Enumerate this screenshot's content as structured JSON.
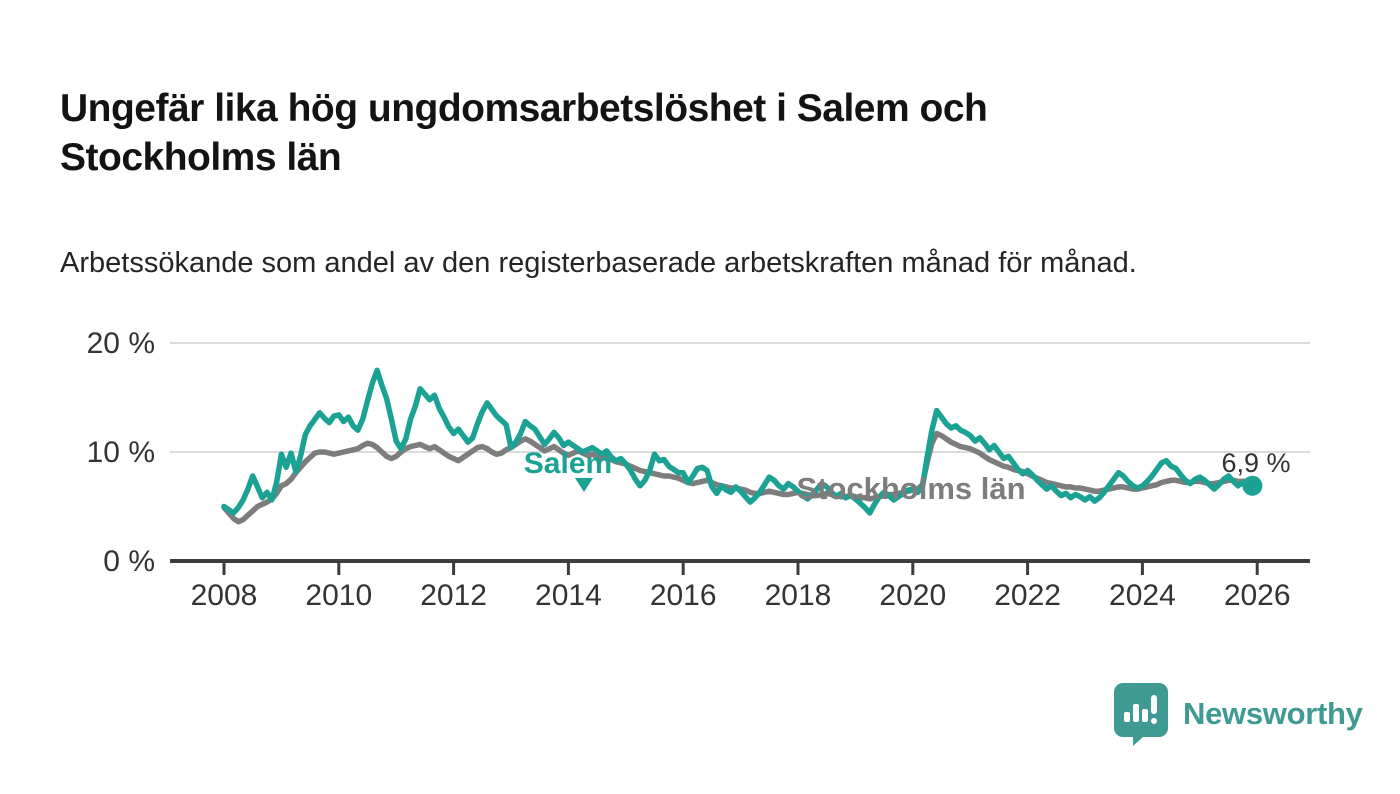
{
  "header": {
    "title": "Ungefär lika hög ungdomsarbetslöshet i Salem och Stockholms län",
    "subtitle": "Arbetssökande som andel av den registerbaserade arbetskraften månad för månad."
  },
  "footer": {
    "brand_name": "Newsworthy",
    "brand_color": "#3e9a92",
    "logo_icon": "speech-bubble-bar-chart-icon"
  },
  "chart_data": {
    "type": "line",
    "unit": "%",
    "x_start_year": 2008,
    "x_months_per_point": 1,
    "xlim": [
      2007.0,
      2026.9
    ],
    "ylim": [
      0,
      20
    ],
    "grid": "horizontal-only",
    "y_ticks": [
      {
        "value": 0,
        "label": "0 %"
      },
      {
        "value": 10,
        "label": "10 %"
      },
      {
        "value": 20,
        "label": "20 %"
      }
    ],
    "x_ticks": [
      {
        "value": 2008,
        "label": "2008"
      },
      {
        "value": 2010,
        "label": "2010"
      },
      {
        "value": 2012,
        "label": "2012"
      },
      {
        "value": 2014,
        "label": "2014"
      },
      {
        "value": 2016,
        "label": "2016"
      },
      {
        "value": 2018,
        "label": "2018"
      },
      {
        "value": 2020,
        "label": "2020"
      },
      {
        "value": 2022,
        "label": "2022"
      },
      {
        "value": 2024,
        "label": "2024"
      },
      {
        "value": 2026,
        "label": "2026"
      }
    ],
    "series": [
      {
        "name": "Stockholms län",
        "label_inline": "Stockholms län",
        "color": "#7d7d7d",
        "values": [
          4.9,
          4.4,
          3.9,
          3.6,
          3.8,
          4.2,
          4.6,
          5.0,
          5.2,
          5.4,
          5.7,
          6.2,
          6.9,
          7.1,
          7.5,
          8.1,
          8.6,
          9.1,
          9.5,
          9.9,
          10.0,
          10.0,
          9.9,
          9.8,
          9.9,
          10.0,
          10.1,
          10.2,
          10.3,
          10.6,
          10.8,
          10.7,
          10.4,
          10.0,
          9.6,
          9.4,
          9.6,
          10.0,
          10.3,
          10.5,
          10.6,
          10.7,
          10.5,
          10.3,
          10.5,
          10.2,
          9.9,
          9.6,
          9.4,
          9.2,
          9.5,
          9.8,
          10.1,
          10.4,
          10.5,
          10.3,
          10.0,
          9.8,
          9.9,
          10.2,
          10.4,
          10.7,
          11.0,
          11.2,
          11.0,
          10.7,
          10.4,
          10.1,
          10.3,
          10.5,
          10.2,
          9.9,
          9.7,
          9.9,
          10.1,
          9.9,
          9.7,
          9.8,
          9.6,
          9.4,
          9.6,
          9.3,
          9.1,
          9.0,
          8.9,
          8.7,
          8.5,
          8.3,
          8.2,
          8.1,
          8.0,
          7.9,
          7.8,
          7.8,
          7.7,
          7.6,
          7.4,
          7.2,
          7.1,
          7.2,
          7.3,
          7.4,
          7.2,
          7.0,
          6.9,
          6.8,
          6.7,
          6.7,
          6.6,
          6.5,
          6.3,
          6.2,
          6.2,
          6.3,
          6.4,
          6.3,
          6.2,
          6.1,
          6.1,
          6.2,
          6.3,
          6.2,
          6.1,
          6.0,
          6.0,
          6.1,
          6.2,
          6.1,
          6.0,
          5.9,
          5.9,
          6.0,
          5.9,
          5.8,
          5.8,
          5.7,
          5.8,
          5.9,
          6.0,
          6.1,
          6.1,
          6.2,
          6.3,
          6.4,
          6.5,
          6.6,
          7.0,
          9.0,
          10.8,
          11.7,
          11.5,
          11.2,
          10.9,
          10.7,
          10.5,
          10.4,
          10.3,
          10.1,
          9.9,
          9.6,
          9.3,
          9.1,
          8.9,
          8.7,
          8.6,
          8.4,
          8.3,
          8.2,
          8.0,
          7.8,
          7.6,
          7.4,
          7.2,
          7.1,
          7.0,
          6.9,
          6.8,
          6.8,
          6.7,
          6.7,
          6.6,
          6.5,
          6.4,
          6.4,
          6.5,
          6.6,
          6.7,
          6.8,
          6.8,
          6.7,
          6.6,
          6.6,
          6.7,
          6.8,
          6.9,
          7.0,
          7.2,
          7.3,
          7.4,
          7.4,
          7.3,
          7.2,
          7.2,
          7.3,
          7.3,
          7.2,
          7.1,
          7.1,
          7.2,
          7.3,
          7.4,
          7.4,
          7.3,
          7.3,
          7.3,
          7.3
        ]
      },
      {
        "name": "Salem",
        "label_inline": "Salem",
        "color": "#1ca294",
        "values": [
          5.0,
          4.7,
          4.4,
          4.9,
          5.6,
          6.6,
          7.8,
          6.8,
          5.8,
          6.3,
          5.6,
          7.2,
          9.8,
          8.6,
          9.9,
          8.2,
          9.6,
          11.6,
          12.4,
          13.0,
          13.6,
          13.1,
          12.7,
          13.3,
          13.4,
          12.8,
          13.2,
          12.4,
          12.0,
          13.0,
          14.7,
          16.3,
          17.5,
          16.1,
          14.9,
          13.0,
          11.0,
          10.3,
          11.2,
          13.0,
          14.2,
          15.8,
          15.3,
          14.8,
          15.2,
          14.0,
          13.2,
          12.3,
          11.7,
          12.1,
          11.5,
          10.9,
          11.3,
          12.6,
          13.7,
          14.5,
          13.9,
          13.3,
          12.9,
          12.5,
          10.4,
          10.9,
          11.7,
          12.8,
          12.4,
          12.1,
          11.4,
          10.7,
          11.2,
          11.8,
          11.3,
          10.6,
          10.9,
          10.6,
          10.3,
          10.0,
          10.2,
          10.4,
          10.1,
          9.8,
          10.1,
          9.5,
          9.2,
          9.4,
          8.9,
          8.3,
          7.5,
          6.9,
          7.4,
          8.3,
          9.8,
          9.2,
          9.3,
          8.7,
          8.4,
          8.1,
          8.1,
          7.2,
          7.8,
          8.5,
          8.6,
          8.3,
          6.8,
          6.2,
          6.9,
          6.5,
          6.3,
          6.8,
          6.4,
          5.9,
          5.4,
          5.8,
          6.3,
          7.0,
          7.7,
          7.4,
          6.9,
          6.6,
          7.1,
          6.8,
          6.4,
          6.0,
          5.7,
          6.1,
          6.6,
          7.1,
          6.8,
          6.3,
          5.9,
          6.2,
          5.8,
          6.0,
          5.7,
          5.3,
          4.9,
          4.4,
          5.2,
          5.9,
          6.3,
          6.0,
          5.6,
          5.9,
          6.2,
          6.5,
          6.6,
          6.3,
          6.8,
          9.5,
          12.0,
          13.8,
          13.2,
          12.6,
          12.2,
          12.4,
          12.0,
          11.8,
          11.5,
          11.0,
          11.3,
          10.8,
          10.2,
          10.6,
          10.0,
          9.4,
          9.6,
          9.0,
          8.4,
          8.0,
          8.3,
          7.9,
          7.4,
          7.0,
          6.6,
          6.9,
          6.4,
          6.0,
          6.2,
          5.8,
          6.1,
          5.9,
          5.6,
          5.9,
          5.5,
          5.8,
          6.3,
          6.9,
          7.5,
          8.1,
          7.8,
          7.3,
          6.9,
          6.7,
          6.9,
          7.3,
          7.8,
          8.4,
          9.0,
          9.2,
          8.7,
          8.5,
          7.9,
          7.4,
          7.1,
          7.5,
          7.7,
          7.4,
          7.0,
          6.6,
          7.0,
          7.5,
          7.8,
          7.3,
          6.9,
          7.2,
          6.6,
          6.9
        ]
      }
    ],
    "end_annotation": {
      "series": "Salem",
      "text": "6,9 %",
      "value": 6.9
    },
    "colors": {
      "grid": "#dcdcdc",
      "axis": "#3d3d3d",
      "tick_text": "#333333",
      "annotation_text": "#333333"
    }
  }
}
